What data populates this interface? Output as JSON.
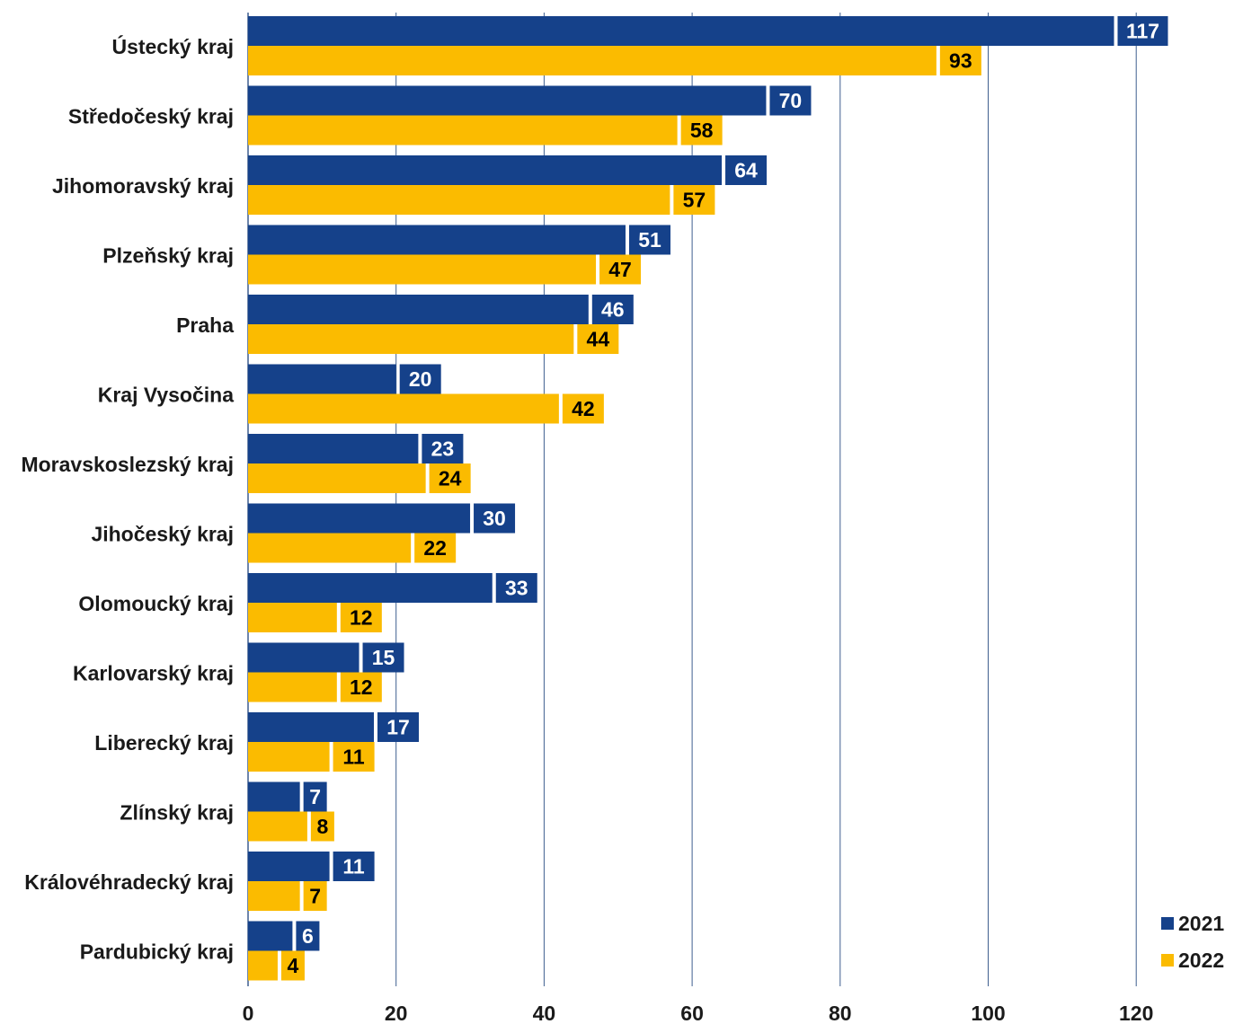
{
  "chart_data": {
    "type": "bar",
    "orientation": "horizontal",
    "categories": [
      "Ústecký kraj",
      "Středočeský kraj",
      "Jihomoravský kraj",
      "Plzeňský kraj",
      "Praha",
      "Kraj Vysočina",
      "Moravskoslezský kraj",
      "Jihočeský kraj",
      "Olomoucký kraj",
      "Karlovarský kraj",
      "Liberecký kraj",
      "Zlínský kraj",
      "Královéhradecký kraj",
      "Pardubický kraj"
    ],
    "series": [
      {
        "name": "2021",
        "color": "#15418a",
        "label_text_color": "#ffffff",
        "values": [
          117,
          70,
          64,
          51,
          46,
          20,
          23,
          30,
          33,
          15,
          17,
          7,
          11,
          6
        ]
      },
      {
        "name": "2022",
        "color": "#fbbb00",
        "label_text_color": "#000000",
        "values": [
          93,
          58,
          57,
          47,
          44,
          42,
          24,
          22,
          12,
          12,
          11,
          8,
          7,
          4
        ]
      }
    ],
    "xlim": [
      0,
      120
    ],
    "xticks": [
      "0",
      "20",
      "40",
      "60",
      "80",
      "100",
      "120"
    ],
    "grid": true,
    "gridline_color": "#3f5f8f",
    "legend_position": "bottom-right",
    "data_labels": true,
    "title": "",
    "xlabel": "",
    "ylabel": ""
  }
}
